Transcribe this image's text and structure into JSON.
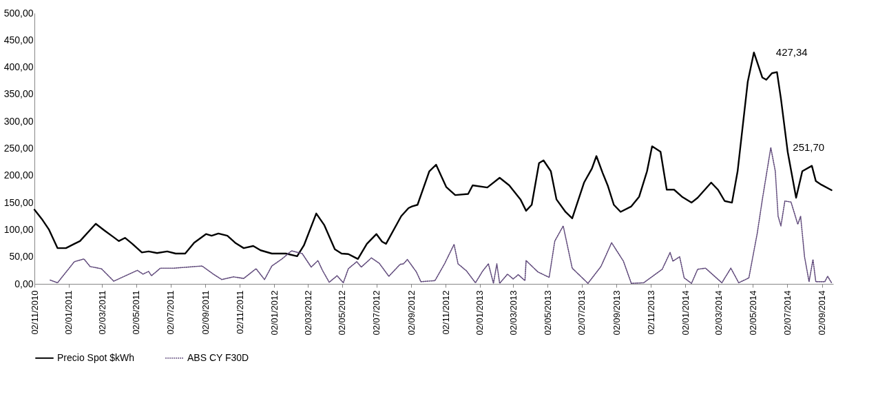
{
  "chart_data": {
    "type": "line",
    "xlim": [
      "2010-11-02",
      "2014-09-22"
    ],
    "xticks": [
      {
        "value": "2010-11-02",
        "label": "02/11/2010"
      },
      {
        "value": "2011-01-02",
        "label": "02/01/2011"
      },
      {
        "value": "2011-03-02",
        "label": "02/03/2011"
      },
      {
        "value": "2011-05-02",
        "label": "02/05/2011"
      },
      {
        "value": "2011-07-02",
        "label": "02/07/2011"
      },
      {
        "value": "2011-09-02",
        "label": "02/09/2011"
      },
      {
        "value": "2011-11-02",
        "label": "02/11/2011"
      },
      {
        "value": "2012-01-02",
        "label": "02/01/2012"
      },
      {
        "value": "2012-03-02",
        "label": "02/03/2012"
      },
      {
        "value": "2012-05-02",
        "label": "02/05/2012"
      },
      {
        "value": "2012-07-02",
        "label": "02/07/2012"
      },
      {
        "value": "2012-09-02",
        "label": "02/09/2012"
      },
      {
        "value": "2012-11-02",
        "label": "02/11/2012"
      },
      {
        "value": "2013-01-02",
        "label": "02/01/2013"
      },
      {
        "value": "2013-03-02",
        "label": "02/03/2013"
      },
      {
        "value": "2013-05-02",
        "label": "02/05/2013"
      },
      {
        "value": "2013-07-02",
        "label": "02/07/2013"
      },
      {
        "value": "2013-09-02",
        "label": "02/09/2013"
      },
      {
        "value": "2013-11-02",
        "label": "02/11/2013"
      },
      {
        "value": "2014-01-02",
        "label": "02/01/2014"
      },
      {
        "value": "2014-03-02",
        "label": "02/03/2014"
      },
      {
        "value": "2014-05-02",
        "label": "02/05/2014"
      },
      {
        "value": "2014-07-02",
        "label": "02/07/2014"
      },
      {
        "value": "2014-09-02",
        "label": "02/09/2014"
      }
    ],
    "ylim": [
      0,
      500
    ],
    "yticks": [
      {
        "value": 0,
        "label": "0,00"
      },
      {
        "value": 50,
        "label": "50,00"
      },
      {
        "value": 100,
        "label": "100,00"
      },
      {
        "value": 150,
        "label": "150,00"
      },
      {
        "value": 200,
        "label": "200,00"
      },
      {
        "value": 250,
        "label": "250,00"
      },
      {
        "value": 300,
        "label": "300,00"
      },
      {
        "value": 350,
        "label": "350,00"
      },
      {
        "value": 400,
        "label": "400,00"
      },
      {
        "value": 450,
        "label": "450,00"
      },
      {
        "value": 500,
        "label": "500,00"
      }
    ],
    "grid": false,
    "legend": "bottom",
    "marker": "none",
    "annotations": [
      {
        "text": "427,34",
        "x": "2014-05-04",
        "y": 427.34
      },
      {
        "text": "251,70",
        "x": "2014-06-03",
        "y": 251.7
      }
    ],
    "series": [
      {
        "name": "Precio Spot $kWh",
        "color": "#000000",
        "line_style": "solid",
        "x": [
          "2010-11-02",
          "2010-11-15",
          "2010-11-28",
          "2010-12-13",
          "2010-12-28",
          "2011-01-12",
          "2011-01-22",
          "2011-02-19",
          "2011-03-06",
          "2011-03-23",
          "2011-04-01",
          "2011-04-12",
          "2011-04-25",
          "2011-05-12",
          "2011-05-24",
          "2011-06-08",
          "2011-06-26",
          "2011-07-11",
          "2011-07-28",
          "2011-08-13",
          "2011-09-03",
          "2011-09-13",
          "2011-09-25",
          "2011-10-11",
          "2011-10-26",
          "2011-11-09",
          "2011-11-26",
          "2011-12-09",
          "2011-12-29",
          "2012-01-23",
          "2012-02-12",
          "2012-02-24",
          "2012-03-17",
          "2012-03-31",
          "2012-04-19",
          "2012-05-01",
          "2012-05-13",
          "2012-05-30",
          "2012-06-15",
          "2012-07-02",
          "2012-07-12",
          "2012-07-19",
          "2012-08-15",
          "2012-08-28",
          "2012-09-03",
          "2012-09-13",
          "2012-10-04",
          "2012-10-16",
          "2012-11-03",
          "2012-11-19",
          "2012-12-12",
          "2012-12-20",
          "2013-01-15",
          "2013-02-06",
          "2013-02-23",
          "2013-03-15",
          "2013-03-25",
          "2013-04-04",
          "2013-04-17",
          "2013-04-25",
          "2013-05-08",
          "2013-05-18",
          "2013-06-03",
          "2013-06-15",
          "2013-07-06",
          "2013-07-20",
          "2013-07-28",
          "2013-08-08",
          "2013-08-17",
          "2013-08-28",
          "2013-09-09",
          "2013-09-28",
          "2013-10-12",
          "2013-10-26",
          "2013-11-04",
          "2013-11-19",
          "2013-11-30",
          "2013-12-13",
          "2013-12-27",
          "2014-01-13",
          "2014-01-24",
          "2014-02-17",
          "2014-03-01",
          "2014-03-13",
          "2014-03-26",
          "2014-04-05",
          "2014-04-23",
          "2014-05-04",
          "2014-05-19",
          "2014-05-26",
          "2014-06-05",
          "2014-06-14",
          "2014-06-21",
          "2014-07-03",
          "2014-07-18",
          "2014-07-29",
          "2014-08-15",
          "2014-08-22",
          "2014-09-01",
          "2014-09-19"
        ],
        "values": [
          137,
          120,
          100,
          66,
          66,
          74,
          79,
          111,
          99,
          86,
          79,
          85,
          74,
          58,
          60,
          57,
          60,
          56,
          56,
          76,
          92,
          89,
          93,
          89,
          75,
          66,
          70,
          62,
          56,
          56,
          51,
          71,
          130,
          109,
          64,
          56,
          55,
          46,
          74,
          92,
          78,
          74,
          125,
          140,
          143,
          146,
          208,
          220,
          179,
          164,
          166,
          182,
          178,
          196,
          182,
          156,
          135,
          146,
          223,
          228,
          208,
          156,
          133,
          121,
          187,
          213,
          236,
          205,
          182,
          146,
          133,
          143,
          161,
          208,
          254,
          244,
          174,
          174,
          161,
          150,
          159,
          187,
          174,
          153,
          150,
          208,
          373,
          427.34,
          381,
          377,
          389,
          391,
          342,
          244,
          159,
          208,
          218,
          190,
          183,
          173
        ]
      },
      {
        "name": "ABS CY F30D",
        "color": "#604a7b",
        "line_style": "dotted",
        "x": [
          "2010-11-30",
          "2010-12-13",
          "2010-12-23",
          "2011-01-12",
          "2011-01-29",
          "2011-02-09",
          "2011-03-01",
          "2011-03-23",
          "2011-04-15",
          "2011-05-04",
          "2011-05-14",
          "2011-05-24",
          "2011-05-29",
          "2011-06-14",
          "2011-07-08",
          "2011-08-02",
          "2011-08-27",
          "2011-09-16",
          "2011-10-01",
          "2011-10-22",
          "2011-11-09",
          "2011-12-01",
          "2011-12-16",
          "2011-12-29",
          "2012-01-16",
          "2012-02-02",
          "2012-02-21",
          "2012-03-08",
          "2012-03-20",
          "2012-03-28",
          "2012-04-09",
          "2012-04-23",
          "2012-05-04",
          "2012-05-13",
          "2012-05-28",
          "2012-06-05",
          "2012-06-23",
          "2012-07-07",
          "2012-07-24",
          "2012-08-13",
          "2012-08-19",
          "2012-08-26",
          "2012-09-11",
          "2012-09-19",
          "2012-10-14",
          "2012-10-31",
          "2012-11-17",
          "2012-11-24",
          "2012-12-09",
          "2012-12-25",
          "2013-01-07",
          "2013-01-17",
          "2013-01-26",
          "2013-02-01",
          "2013-02-06",
          "2013-02-20",
          "2013-03-02",
          "2013-03-11",
          "2013-03-23",
          "2013-03-25",
          "2013-04-15",
          "2013-05-05",
          "2013-05-15",
          "2013-05-30",
          "2013-06-15",
          "2013-07-13",
          "2013-08-05",
          "2013-08-24",
          "2013-09-14",
          "2013-09-28",
          "2013-10-20",
          "2013-11-22",
          "2013-12-06",
          "2013-12-11",
          "2013-12-23",
          "2013-12-31",
          "2014-01-13",
          "2014-01-24",
          "2014-02-07",
          "2014-03-08",
          "2014-03-24",
          "2014-04-07",
          "2014-04-25",
          "2014-05-10",
          "2014-05-19",
          "2014-06-03",
          "2014-06-11",
          "2014-06-16",
          "2014-06-21",
          "2014-06-28",
          "2014-07-09",
          "2014-07-21",
          "2014-07-26",
          "2014-08-02",
          "2014-08-10",
          "2014-08-17",
          "2014-08-22",
          "2014-09-07",
          "2014-09-12",
          "2014-09-19"
        ],
        "values": [
          7,
          2,
          15,
          41,
          46,
          32,
          28,
          5,
          16,
          25,
          18,
          23,
          15,
          29,
          29,
          31,
          33,
          18,
          8,
          13,
          10,
          28,
          8,
          33,
          46,
          61,
          56,
          31,
          43,
          25,
          3,
          15,
          2,
          28,
          41,
          31,
          48,
          38,
          14,
          36,
          37,
          45,
          22,
          4,
          6,
          37,
          73,
          37,
          24,
          2,
          24,
          37,
          1,
          37,
          1,
          18,
          9,
          17,
          6,
          43,
          22,
          12,
          79,
          107,
          29,
          1,
          32,
          76,
          42,
          1,
          2,
          27,
          58,
          42,
          50,
          11,
          1,
          27,
          29,
          2,
          29,
          2,
          11,
          94,
          156,
          251.7,
          208,
          125,
          107,
          153,
          151,
          110,
          125,
          50,
          4,
          45,
          4,
          4,
          14,
          2
        ]
      }
    ]
  }
}
